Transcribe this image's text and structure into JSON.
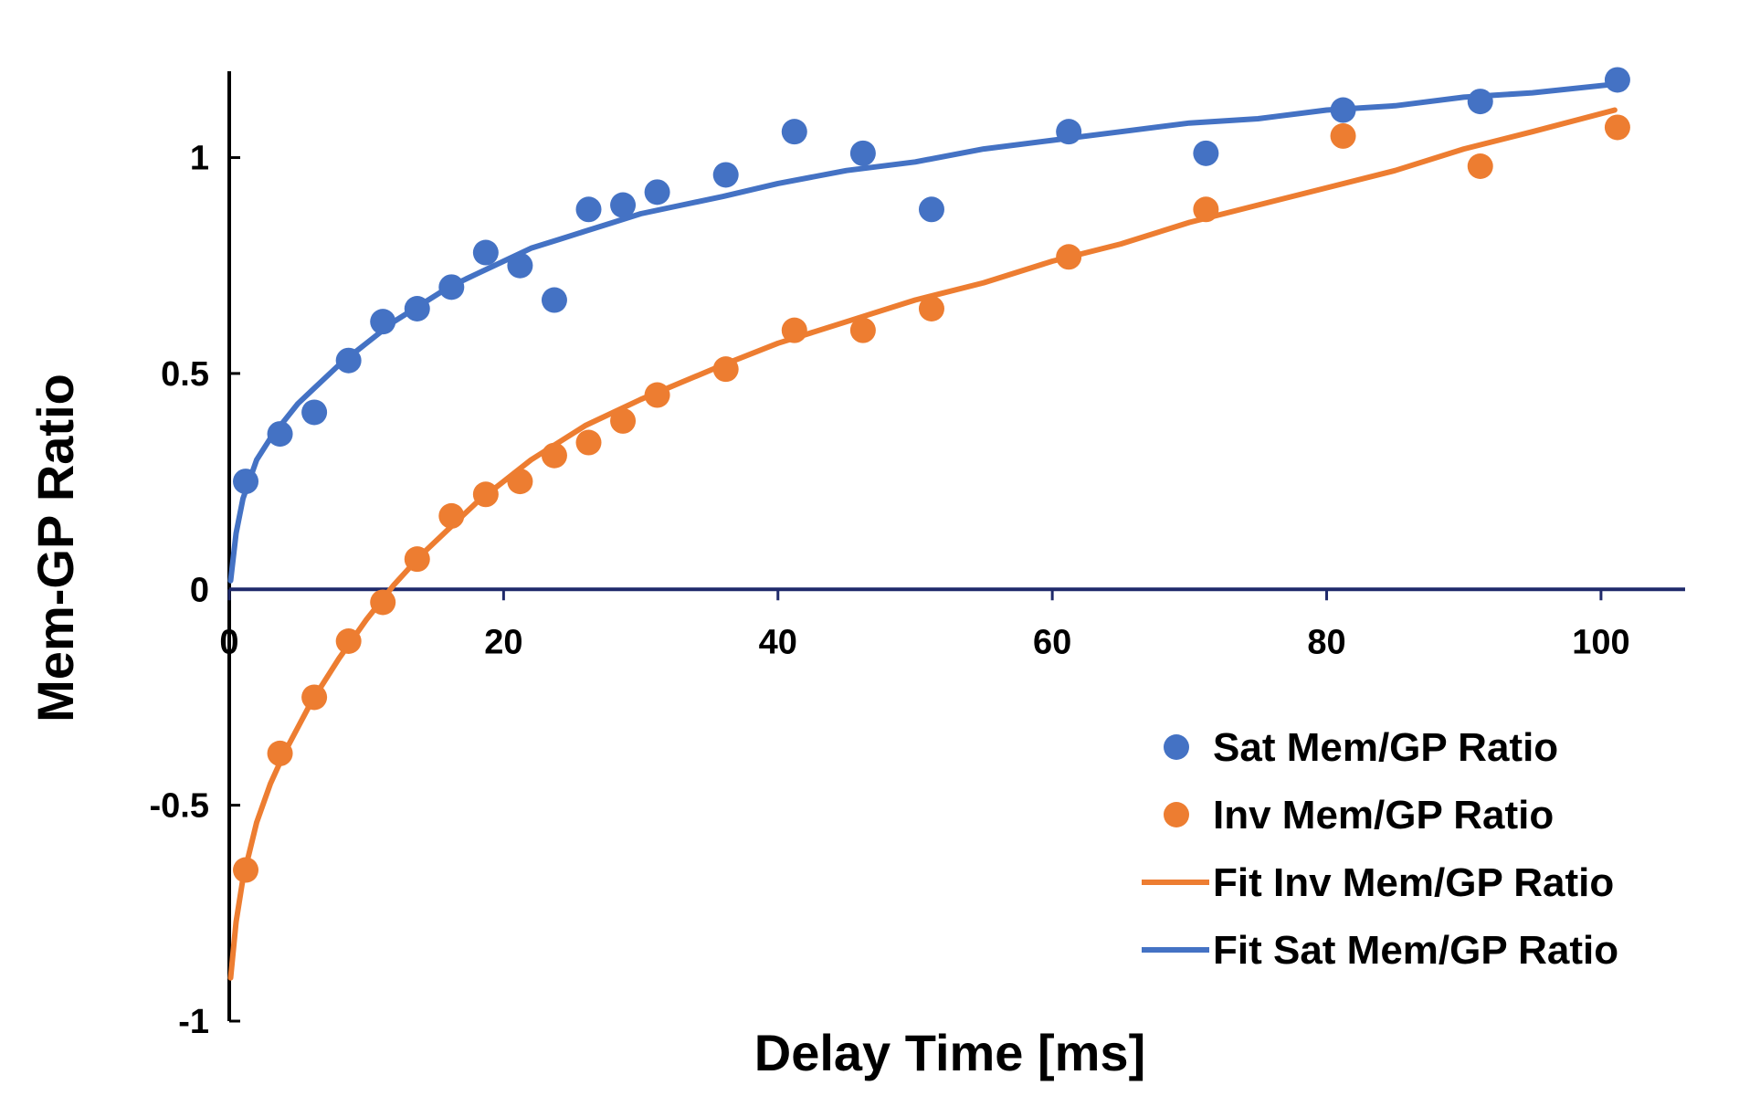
{
  "chart_data": {
    "type": "scatter",
    "title": "",
    "xlabel": "Delay Time [ms]",
    "ylabel": "Mem-GP Ratio",
    "xlim": [
      0,
      105
    ],
    "ylim": [
      -1,
      1.2
    ],
    "x_ticks": [
      0,
      20,
      40,
      60,
      80,
      100
    ],
    "x_tick_labels": [
      "0",
      "20",
      "40",
      "60",
      "80",
      "100"
    ],
    "y_ticks": [
      -1,
      -0.5,
      0,
      0.5,
      1
    ],
    "y_tick_labels": [
      "-1",
      "-0.5",
      "0",
      "0.5",
      "1"
    ],
    "grid": false,
    "legend_position": "bottom-right",
    "series": [
      {
        "name": "Sat Mem/GP Ratio",
        "kind": "points",
        "color": "#4472C4",
        "x": [
          1.2,
          3.7,
          6.2,
          8.7,
          11.2,
          13.7,
          16.2,
          18.7,
          21.2,
          23.7,
          26.2,
          28.7,
          31.2,
          36.2,
          41.2,
          46.2,
          51.2,
          61.2,
          71.2,
          81.2,
          91.2,
          101.2
        ],
        "y": [
          0.25,
          0.36,
          0.41,
          0.53,
          0.62,
          0.65,
          0.7,
          0.78,
          0.75,
          0.67,
          0.88,
          0.89,
          0.92,
          0.96,
          1.06,
          1.01,
          0.88,
          1.06,
          1.01,
          1.11,
          1.13,
          1.18
        ]
      },
      {
        "name": "Inv Mem/GP Ratio",
        "kind": "points",
        "color": "#ED7D31",
        "x": [
          1.2,
          3.7,
          6.2,
          8.7,
          11.2,
          13.7,
          16.2,
          18.7,
          21.2,
          23.7,
          26.2,
          28.7,
          31.2,
          36.2,
          41.2,
          46.2,
          51.2,
          61.2,
          71.2,
          81.2,
          91.2,
          101.2
        ],
        "y": [
          -0.65,
          -0.38,
          -0.25,
          -0.12,
          -0.03,
          0.07,
          0.17,
          0.22,
          0.25,
          0.31,
          0.34,
          0.39,
          0.45,
          0.51,
          0.6,
          0.6,
          0.65,
          0.77,
          0.88,
          1.05,
          0.98,
          1.07
        ]
      },
      {
        "name": "Fit Inv Mem/GP Ratio",
        "kind": "line",
        "color": "#ED7D31",
        "x": [
          0.1,
          0.5,
          1,
          2,
          3,
          4,
          5,
          6,
          8,
          10,
          12,
          14,
          16,
          18,
          20,
          22,
          24,
          26,
          28,
          30,
          33,
          36,
          40,
          45,
          50,
          55,
          60,
          65,
          70,
          75,
          80,
          85,
          90,
          95,
          101
        ],
        "y": [
          -0.9,
          -0.77,
          -0.67,
          -0.54,
          -0.45,
          -0.38,
          -0.32,
          -0.26,
          -0.16,
          -0.07,
          0.01,
          0.08,
          0.14,
          0.2,
          0.25,
          0.3,
          0.34,
          0.38,
          0.41,
          0.44,
          0.48,
          0.52,
          0.57,
          0.62,
          0.67,
          0.71,
          0.76,
          0.8,
          0.85,
          0.89,
          0.93,
          0.97,
          1.02,
          1.06,
          1.11
        ]
      },
      {
        "name": "Fit Sat Mem/GP Ratio",
        "kind": "line",
        "color": "#4472C4",
        "x": [
          0.1,
          0.5,
          1,
          2,
          3,
          4,
          5,
          6,
          8,
          10,
          12,
          14,
          16,
          18,
          20,
          22,
          24,
          26,
          28,
          30,
          33,
          36,
          40,
          45,
          50,
          55,
          60,
          65,
          70,
          75,
          80,
          85,
          90,
          95,
          101
        ],
        "y": [
          0.02,
          0.13,
          0.21,
          0.3,
          0.35,
          0.39,
          0.43,
          0.46,
          0.52,
          0.57,
          0.62,
          0.66,
          0.7,
          0.73,
          0.76,
          0.79,
          0.81,
          0.83,
          0.85,
          0.87,
          0.89,
          0.91,
          0.94,
          0.97,
          0.99,
          1.02,
          1.04,
          1.06,
          1.08,
          1.09,
          1.11,
          1.12,
          1.14,
          1.15,
          1.17
        ]
      }
    ]
  }
}
